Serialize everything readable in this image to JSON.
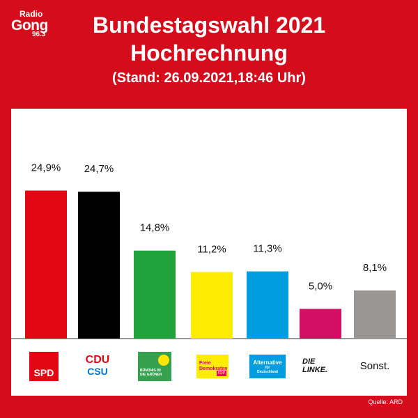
{
  "brand": {
    "line1": "Radio",
    "line2": "Gong",
    "line3": "96.3"
  },
  "header": {
    "title_line1": "Bundestagswahl 2021",
    "title_line2": "Hochrechnung",
    "subtitle": "(Stand: 26.09.2021,18:46 Uhr)"
  },
  "source": "Quelle: ARD",
  "party_logos": {
    "spd": "SPD",
    "cdu_line1": "CDU",
    "csu_line2": "CSU",
    "gruene_line1": "BÜNDNIS 90",
    "gruene_line2": "DIE GRÜNEN",
    "fdp_line1": "Freie",
    "fdp_line2": "Demokraten",
    "fdp_tag": "FDP",
    "afd_line1": "Alternative",
    "afd_line2": "für",
    "afd_line3": "Deutschland",
    "linke": "DIE LINKE.",
    "sonst": "Sonst."
  },
  "chart_data": {
    "type": "bar",
    "categories": [
      "SPD",
      "CDU/CSU",
      "Grüne",
      "FDP",
      "AfD",
      "Die Linke",
      "Sonst."
    ],
    "values": [
      24.9,
      24.7,
      14.8,
      11.2,
      11.3,
      5.0,
      8.1
    ],
    "labels": [
      "24,9%",
      "24,7%",
      "14,8%",
      "11,2%",
      "11,3%",
      "5,0%",
      "8,1%"
    ],
    "colors": [
      "#e30613",
      "#000000",
      "#1fa33a",
      "#ffed00",
      "#009ee0",
      "#d20f63",
      "#9a9693"
    ],
    "ylim": [
      0,
      30
    ],
    "grid": false,
    "title": "",
    "xlabel": "",
    "ylabel": ""
  }
}
